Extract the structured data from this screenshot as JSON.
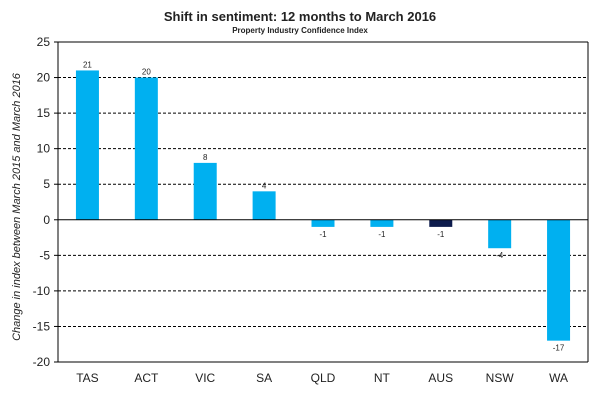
{
  "chart_data": {
    "type": "bar",
    "title": "Shift in sentiment: 12 months to March 2016",
    "subtitle": "Property Industry Confidence Index",
    "ylabel": "Change in index between March 2015 and March 2016",
    "xlabel": "",
    "categories": [
      "TAS",
      "ACT",
      "VIC",
      "SA",
      "QLD",
      "NT",
      "AUS",
      "NSW",
      "WA"
    ],
    "values": [
      21,
      20,
      8,
      4,
      -1,
      -1,
      -1,
      -4,
      -17
    ],
    "data_labels": [
      "21",
      "20",
      "8",
      "4",
      "-1",
      "-1",
      "-1",
      "-4",
      "-17"
    ],
    "ylim": [
      -20,
      25
    ],
    "yticks": [
      25,
      20,
      15,
      10,
      5,
      0,
      -5,
      -10,
      -15,
      -20
    ],
    "grid": "horizontal dashed",
    "legend": "none",
    "colors": {
      "bar": "#00b0f0",
      "highlight": "#0d1b4c",
      "highlight_category": "AUS",
      "grid": "#000000"
    }
  }
}
